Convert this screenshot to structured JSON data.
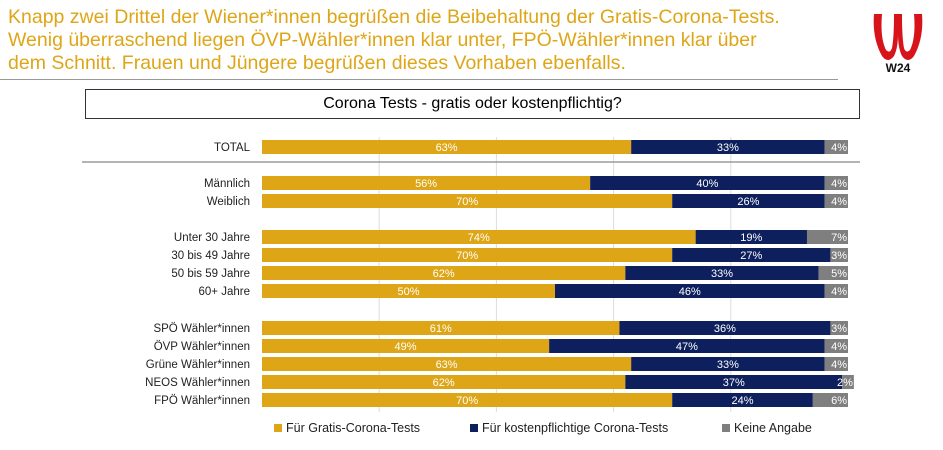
{
  "headline": {
    "lines": [
      "Knapp zwei Drittel der Wiener*innen begrüßen die Beibehaltung der Gratis-Corona-Tests.",
      "Wenig überraschend liegen ÖVP-Wähler*innen klar unter, FPÖ-Wähler*innen klar über",
      "dem Schnitt. Frauen und Jüngere begrüßen dieses Vorhaben ebenfalls."
    ],
    "color": "#dea617"
  },
  "logo": {
    "text": "W24",
    "color": "#d7141a"
  },
  "chart_data": {
    "type": "bar",
    "orientation": "horizontal",
    "stacked": true,
    "title": "Corona Tests - gratis oder kostenpflichtig?",
    "categories": [
      "TOTAL",
      "Männlich",
      "Weiblich",
      "Unter 30 Jahre",
      "30 bis 49 Jahre",
      "50 bis 59 Jahre",
      "60+ Jahre",
      "SPÖ Wähler*innen",
      "ÖVP Wähler*innen",
      "Grüne Wähler*innen",
      "NEOS Wähler*innen",
      "FPÖ Wähler*innen"
    ],
    "series": [
      {
        "name": "Für Gratis-Corona-Tests",
        "color": "#dea617",
        "values": [
          63,
          56,
          70,
          74,
          70,
          62,
          50,
          61,
          49,
          63,
          62,
          70
        ]
      },
      {
        "name": "Für kostenpflichtige Corona-Tests",
        "color": "#0d1f5c",
        "values": [
          33,
          40,
          26,
          19,
          27,
          33,
          46,
          36,
          47,
          33,
          37,
          24
        ]
      },
      {
        "name": "Keine Angabe",
        "color": "#7f7f7f",
        "values": [
          4,
          4,
          4,
          7,
          3,
          5,
          4,
          3,
          4,
          4,
          2,
          6
        ]
      }
    ],
    "value_suffix": "%",
    "xlim": [
      0,
      100
    ],
    "grid": true,
    "legend": "bottom"
  }
}
